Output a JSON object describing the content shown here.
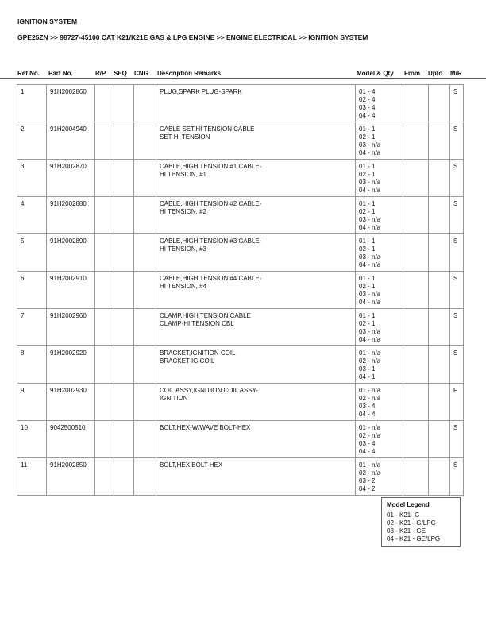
{
  "title": "IGNITION SYSTEM",
  "breadcrumb": "GPE25ZN >> 98727-45100 CAT K21/K21E GAS & LPG ENGINE >> ENGINE ELECTRICAL >> IGNITION SYSTEM",
  "columns": [
    "Ref No.",
    "Part No.",
    "R/P",
    "SEQ",
    "CNG",
    "Description Remarks",
    "Model & Qty",
    "From",
    "Upto",
    "M/R"
  ],
  "rows": [
    {
      "ref": "1",
      "part": "91H2002860",
      "desc": [
        "PLUG,SPARK PLUG-SPARK"
      ],
      "qty": [
        "01 - 4",
        "02 - 4",
        "03 - 4",
        "04 - 4"
      ],
      "mr": "S"
    },
    {
      "ref": "2",
      "part": "91H2004940",
      "desc": [
        "CABLE SET,HI TENSION CABLE",
        "SET-HI TENSION"
      ],
      "qty": [
        "01 - 1",
        "02 - 1",
        "03 - n/a",
        "04 - n/a"
      ],
      "mr": "S"
    },
    {
      "ref": "3",
      "part": "91H2002870",
      "desc": [
        "CABLE,HIGH TENSION #1 CABLE-",
        "HI TENSION, #1"
      ],
      "qty": [
        "01 - 1",
        "02 - 1",
        "03 - n/a",
        "04 - n/a"
      ],
      "mr": "S"
    },
    {
      "ref": "4",
      "part": "91H2002880",
      "desc": [
        "CABLE,HIGH TENSION #2 CABLE-",
        "HI TENSION, #2"
      ],
      "qty": [
        "01 - 1",
        "02 - 1",
        "03 - n/a",
        "04 - n/a"
      ],
      "mr": "S"
    },
    {
      "ref": "5",
      "part": "91H2002890",
      "desc": [
        "CABLE,HIGH TENSION #3 CABLE-",
        "HI TENSION, #3"
      ],
      "qty": [
        "01 - 1",
        "02 - 1",
        "03 - n/a",
        "04 - n/a"
      ],
      "mr": "S"
    },
    {
      "ref": "6",
      "part": "91H2002910",
      "desc": [
        "CABLE,HIGH TENSION #4 CABLE-",
        "HI TENSION, #4"
      ],
      "qty": [
        "01 - 1",
        "02 - 1",
        "03 - n/a",
        "04 - n/a"
      ],
      "mr": "S"
    },
    {
      "ref": "7",
      "part": "91H2002960",
      "desc": [
        "CLAMP,HIGH TENSION CABLE",
        "CLAMP-HI TENSION CBL"
      ],
      "qty": [
        "01 - 1",
        "02 - 1",
        "03 - n/a",
        "04 - n/a"
      ],
      "mr": "S"
    },
    {
      "ref": "8",
      "part": "91H2002920",
      "desc": [
        "BRACKET,IGNITION COIL",
        "BRACKET-IG COIL"
      ],
      "qty": [
        "01 - n/a",
        "02 - n/a",
        "03 - 1",
        "04 - 1"
      ],
      "mr": "S"
    },
    {
      "ref": "9",
      "part": "91H2002930",
      "desc": [
        "COIL ASSY,IGNITION COIL ASSY-",
        "IGNITION"
      ],
      "qty": [
        "01 - n/a",
        "02 - n/a",
        "03 - 4",
        "04 - 4"
      ],
      "mr": "F"
    },
    {
      "ref": "10",
      "part": "9042500510",
      "desc": [
        "BOLT,HEX-W/WAVE BOLT-HEX"
      ],
      "qty": [
        "01 - n/a",
        "02 - n/a",
        "03 - 4",
        "04 - 4"
      ],
      "mr": "S"
    },
    {
      "ref": "11",
      "part": "91H2002850",
      "desc": [
        "BOLT,HEX BOLT-HEX"
      ],
      "qty": [
        "01 - n/a",
        "02 - n/a",
        "03 - 2",
        "04 - 2"
      ],
      "mr": "S"
    }
  ],
  "legend": {
    "title": "Model Legend",
    "items": [
      "01 - K21- G",
      "02 - K21 - G/LPG",
      "03 - K21 - GE",
      "04 - K21 - GE/LPG"
    ]
  }
}
